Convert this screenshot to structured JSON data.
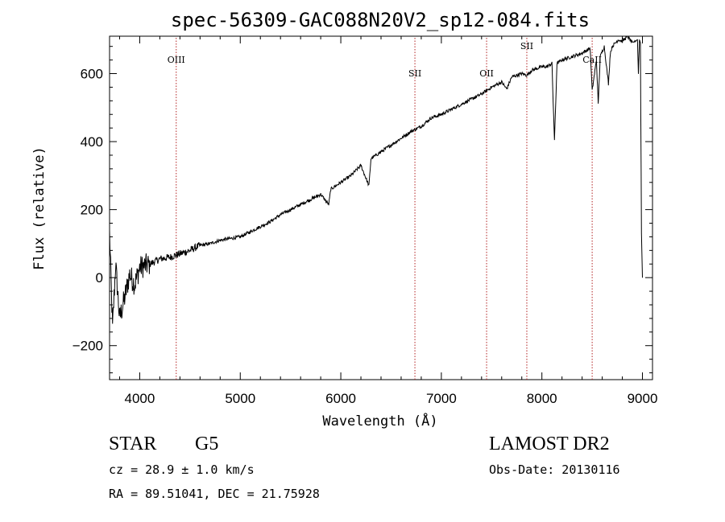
{
  "chart_data": {
    "type": "line",
    "title": "spec-56309-GAC088N20V2_sp12-084.fits",
    "xlabel": "Wavelength (Å)",
    "ylabel": "Flux (relative)",
    "xlim": [
      3700,
      9100
    ],
    "ylim": [
      -300,
      710
    ],
    "xticks": [
      4000,
      5000,
      6000,
      7000,
      8000,
      9000
    ],
    "yticks": [
      -200,
      0,
      200,
      400,
      600
    ],
    "grid": false,
    "line_color": "#000000",
    "marker_color": "#b22222",
    "spectrum": {
      "x": [
        3700,
        3730,
        3760,
        3800,
        3850,
        3900,
        3950,
        4000,
        4100,
        4200,
        4300,
        4400,
        4500,
        4600,
        4700,
        4800,
        4900,
        5000,
        5100,
        5200,
        5300,
        5400,
        5500,
        5600,
        5700,
        5800,
        5880,
        5900,
        6000,
        6100,
        6200,
        6280,
        6300,
        6400,
        6500,
        6600,
        6700,
        6800,
        6900,
        7000,
        7100,
        7200,
        7300,
        7400,
        7500,
        7600,
        7650,
        7700,
        7800,
        7850,
        7900,
        8000,
        8050,
        8100,
        8125,
        8150,
        8200,
        8300,
        8400,
        8480,
        8500,
        8542,
        8560,
        8580,
        8620,
        8662,
        8680,
        8700,
        8760,
        8800,
        8850,
        8900,
        8950,
        8960,
        8970,
        8980,
        8990,
        9000
      ],
      "y": [
        130,
        -150,
        40,
        -120,
        -60,
        10,
        -20,
        30,
        40,
        55,
        60,
        70,
        80,
        95,
        100,
        110,
        115,
        120,
        135,
        150,
        165,
        185,
        200,
        215,
        230,
        245,
        215,
        260,
        280,
        300,
        330,
        270,
        350,
        370,
        390,
        410,
        430,
        445,
        470,
        480,
        495,
        510,
        525,
        540,
        560,
        575,
        555,
        590,
        600,
        595,
        610,
        620,
        620,
        630,
        400,
        630,
        640,
        650,
        660,
        675,
        550,
        640,
        510,
        650,
        680,
        570,
        660,
        680,
        700,
        695,
        710,
        690,
        700,
        600,
        700,
        690,
        130,
        0
      ]
    },
    "annotations": [
      {
        "label": "OIII",
        "x": 4363
      },
      {
        "label": "SII",
        "x": 6737
      },
      {
        "label": "OII",
        "x": 7450
      },
      {
        "label": "SII",
        "x": 7850
      },
      {
        "label": "CaII",
        "x": 8500
      }
    ]
  },
  "info": {
    "object_type": "STAR",
    "subclass": "G5",
    "survey": "LAMOST DR2",
    "velocity": "cz = 28.9 ± 1.0 km/s",
    "obs_date": "Obs-Date: 20130116",
    "coordinates": "RA =  89.51041, DEC =  21.75928"
  }
}
